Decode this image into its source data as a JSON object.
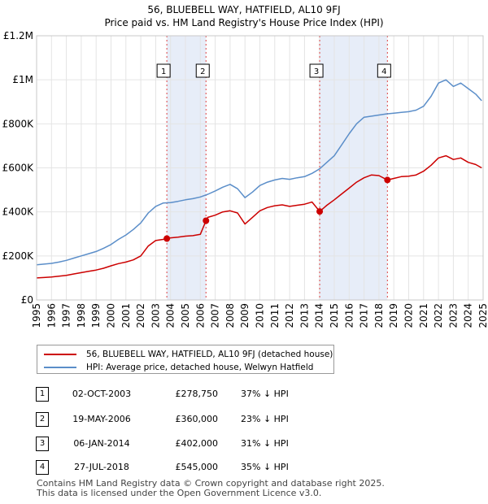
{
  "title": "56, BLUEBELL WAY, HATFIELD, AL10 9FJ",
  "subtitle": "Price paid vs. HM Land Registry's House Price Index (HPI)",
  "chart_data": {
    "type": "line",
    "ylim": [
      0,
      1200000
    ],
    "xlim": [
      1995,
      2025
    ],
    "yticks": [
      {
        "value": 0,
        "label": "£0"
      },
      {
        "value": 200000,
        "label": "£200K"
      },
      {
        "value": 400000,
        "label": "£400K"
      },
      {
        "value": 600000,
        "label": "£600K"
      },
      {
        "value": 800000,
        "label": "£800K"
      },
      {
        "value": 1000000,
        "label": "£1M"
      },
      {
        "value": 1200000,
        "label": "£1.2M"
      }
    ],
    "xticks": [
      "1995",
      "1996",
      "1997",
      "1998",
      "1999",
      "2000",
      "2001",
      "2002",
      "2003",
      "2004",
      "2005",
      "2006",
      "2007",
      "2008",
      "2009",
      "2010",
      "2011",
      "2012",
      "2013",
      "2014",
      "2015",
      "2016",
      "2017",
      "2018",
      "2019",
      "2020",
      "2021",
      "2022",
      "2023",
      "2024",
      "2025"
    ],
    "series": [
      {
        "name": "56, BLUEBELL WAY, HATFIELD, AL10 9FJ (detached house)",
        "color": "#cc0000",
        "x": [
          1995.0,
          1995.5,
          1996.0,
          1996.5,
          1997.0,
          1997.5,
          1998.0,
          1998.5,
          1999.0,
          1999.5,
          2000.0,
          2000.5,
          2001.0,
          2001.5,
          2002.0,
          2002.5,
          2003.0,
          2003.5,
          2003.75,
          2004.0,
          2004.5,
          2005.0,
          2005.5,
          2006.0,
          2006.38,
          2006.5,
          2007.0,
          2007.5,
          2008.0,
          2008.5,
          2009.0,
          2009.5,
          2010.0,
          2010.5,
          2011.0,
          2011.5,
          2012.0,
          2012.5,
          2013.0,
          2013.5,
          2014.02,
          2014.5,
          2015.0,
          2015.5,
          2016.0,
          2016.5,
          2017.0,
          2017.5,
          2018.0,
          2018.57,
          2019.0,
          2019.5,
          2020.0,
          2020.5,
          2021.0,
          2021.5,
          2022.0,
          2022.5,
          2023.0,
          2023.5,
          2024.0,
          2024.5,
          2024.9
        ],
        "values": [
          100000,
          102000,
          104000,
          108000,
          112000,
          118000,
          124000,
          130000,
          136000,
          144000,
          155000,
          165000,
          172000,
          182000,
          200000,
          245000,
          270000,
          275000,
          278750,
          282000,
          285000,
          290000,
          292000,
          298000,
          360000,
          375000,
          385000,
          400000,
          405000,
          395000,
          345000,
          375000,
          405000,
          420000,
          428000,
          432000,
          425000,
          430000,
          435000,
          445000,
          402000,
          430000,
          455000,
          482000,
          508000,
          535000,
          555000,
          568000,
          565000,
          545000,
          552000,
          560000,
          562000,
          568000,
          585000,
          612000,
          645000,
          655000,
          638000,
          645000,
          625000,
          615000,
          600000
        ]
      },
      {
        "name": "HPI: Average price, detached house, Welwyn Hatfield",
        "color": "#5b8ec9",
        "x": [
          1995.0,
          1995.5,
          1996.0,
          1996.5,
          1997.0,
          1997.5,
          1998.0,
          1998.5,
          1999.0,
          1999.5,
          2000.0,
          2000.5,
          2001.0,
          2001.5,
          2002.0,
          2002.5,
          2003.0,
          2003.5,
          2004.0,
          2004.5,
          2005.0,
          2005.5,
          2006.0,
          2006.5,
          2007.0,
          2007.5,
          2008.0,
          2008.5,
          2009.0,
          2009.5,
          2010.0,
          2010.5,
          2011.0,
          2011.5,
          2012.0,
          2012.5,
          2013.0,
          2013.5,
          2014.0,
          2014.5,
          2015.0,
          2015.5,
          2016.0,
          2016.5,
          2017.0,
          2017.5,
          2018.0,
          2018.5,
          2019.0,
          2019.5,
          2020.0,
          2020.5,
          2021.0,
          2021.5,
          2022.0,
          2022.5,
          2023.0,
          2023.5,
          2024.0,
          2024.5,
          2024.9
        ],
        "values": [
          160000,
          163000,
          166000,
          172000,
          180000,
          190000,
          200000,
          210000,
          220000,
          235000,
          252000,
          275000,
          295000,
          320000,
          350000,
          395000,
          425000,
          440000,
          442000,
          448000,
          455000,
          460000,
          468000,
          480000,
          495000,
          512000,
          525000,
          505000,
          465000,
          490000,
          520000,
          535000,
          545000,
          552000,
          548000,
          555000,
          560000,
          575000,
          595000,
          625000,
          655000,
          705000,
          755000,
          800000,
          830000,
          835000,
          840000,
          845000,
          848000,
          852000,
          855000,
          862000,
          880000,
          925000,
          985000,
          1000000,
          970000,
          985000,
          960000,
          935000,
          905000
        ]
      }
    ],
    "transactions": [
      {
        "num": "1",
        "year": 2003.75,
        "price": 278750,
        "date": "02-OCT-2003",
        "price_label": "£278,750",
        "hpi_label": "37% ↓ HPI"
      },
      {
        "num": "2",
        "year": 2006.38,
        "price": 360000,
        "date": "19-MAY-2006",
        "price_label": "£360,000",
        "hpi_label": "23% ↓ HPI"
      },
      {
        "num": "3",
        "year": 2014.02,
        "price": 402000,
        "date": "06-JAN-2014",
        "price_label": "£402,000",
        "hpi_label": "31% ↓ HPI"
      },
      {
        "num": "4",
        "year": 2018.57,
        "price": 545000,
        "date": "27-JUL-2018",
        "price_label": "£545,000",
        "hpi_label": "35% ↓ HPI"
      }
    ],
    "shaded_periods": [
      [
        2003.75,
        2006.38
      ],
      [
        2014.02,
        2018.57
      ]
    ]
  },
  "legend": {
    "property_label": "56, BLUEBELL WAY, HATFIELD, AL10 9FJ (detached house)",
    "hpi_label": "HPI: Average price, detached house, Welwyn Hatfield"
  },
  "footer": {
    "line1": "Contains HM Land Registry data © Crown copyright and database right 2025.",
    "line2": "This data is licensed under the Open Government Licence v3.0."
  }
}
